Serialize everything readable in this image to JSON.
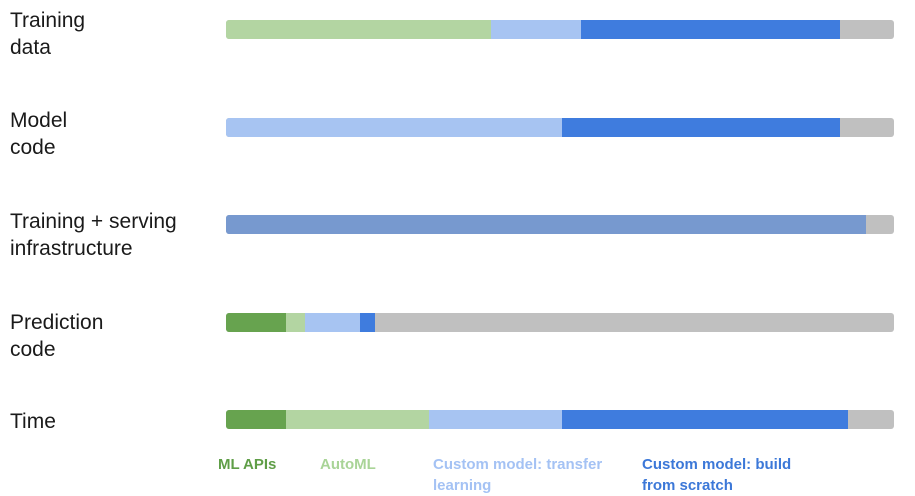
{
  "colors": {
    "track": "#c0c0c0",
    "ml_apis": "#67a34f",
    "automl": "#b3d5a2",
    "transfer": "#a7c4f2",
    "scratch": "#3f7cde",
    "infra": "#7799cf",
    "legend_ml_apis": "#5f9e47",
    "legend_automl": "#a9d497",
    "legend_transfer": "#a4c2f4",
    "legend_scratch": "#3c78d8"
  },
  "rows": [
    {
      "label": "Training\ndata",
      "segments": [
        {
          "category": "automl",
          "start": 0.0,
          "end": 0.397
        },
        {
          "category": "transfer",
          "start": 0.397,
          "end": 0.531
        },
        {
          "category": "scratch",
          "start": 0.531,
          "end": 0.919
        }
      ]
    },
    {
      "label": "Model\ncode",
      "segments": [
        {
          "category": "transfer",
          "start": 0.0,
          "end": 0.503
        },
        {
          "category": "scratch",
          "start": 0.503,
          "end": 0.919
        }
      ]
    },
    {
      "label": "Training + serving\ninfrastructure",
      "segments": [
        {
          "category": "infra",
          "start": 0.0,
          "end": 0.958
        }
      ]
    },
    {
      "label": "Prediction\ncode",
      "segments": [
        {
          "category": "ml_apis",
          "start": 0.0,
          "end": 0.09
        },
        {
          "category": "automl",
          "start": 0.09,
          "end": 0.118
        },
        {
          "category": "transfer",
          "start": 0.118,
          "end": 0.201
        },
        {
          "category": "scratch",
          "start": 0.201,
          "end": 0.223
        }
      ]
    },
    {
      "label": "Time",
      "segments": [
        {
          "category": "ml_apis",
          "start": 0.0,
          "end": 0.09
        },
        {
          "category": "automl",
          "start": 0.09,
          "end": 0.304
        },
        {
          "category": "transfer",
          "start": 0.304,
          "end": 0.503
        },
        {
          "category": "scratch",
          "start": 0.503,
          "end": 0.931
        }
      ]
    }
  ],
  "legend": [
    {
      "key": "ml_apis",
      "label": "ML APIs"
    },
    {
      "key": "automl",
      "label": "AutoML"
    },
    {
      "key": "transfer",
      "label": "Custom model: transfer\nlearning"
    },
    {
      "key": "scratch",
      "label": "Custom model: build\nfrom scratch"
    }
  ]
}
